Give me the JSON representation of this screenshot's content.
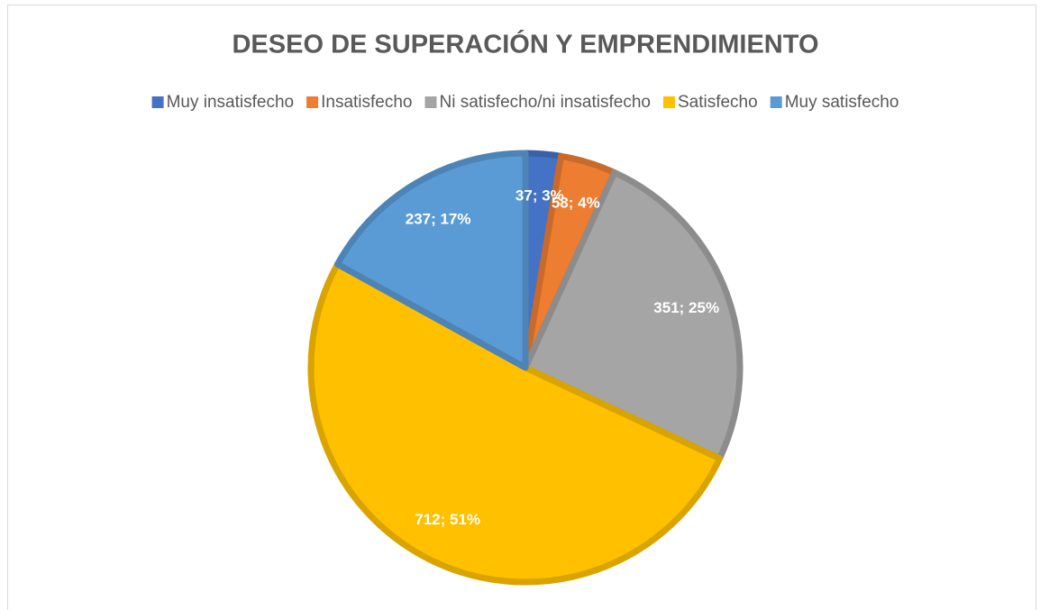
{
  "chart_data": {
    "type": "pie",
    "title": "DESEO DE SUPERACIÓN Y EMPRENDIMIENTO",
    "categories": [
      "Muy insatisfecho",
      "Insatisfecho",
      "Ni satisfecho/ni insatisfecho",
      "Satisfecho",
      "Muy satisfecho"
    ],
    "values": [
      37,
      58,
      351,
      712,
      237
    ],
    "value_labels": [
      "37; 3%",
      "58; 4%",
      "351; 25%",
      "712; 51%",
      "237; 17%"
    ],
    "colors": [
      "#4472c4",
      "#ed7d31",
      "#a5a5a5",
      "#ffc000",
      "#5b9bd5"
    ],
    "legend": "top"
  }
}
